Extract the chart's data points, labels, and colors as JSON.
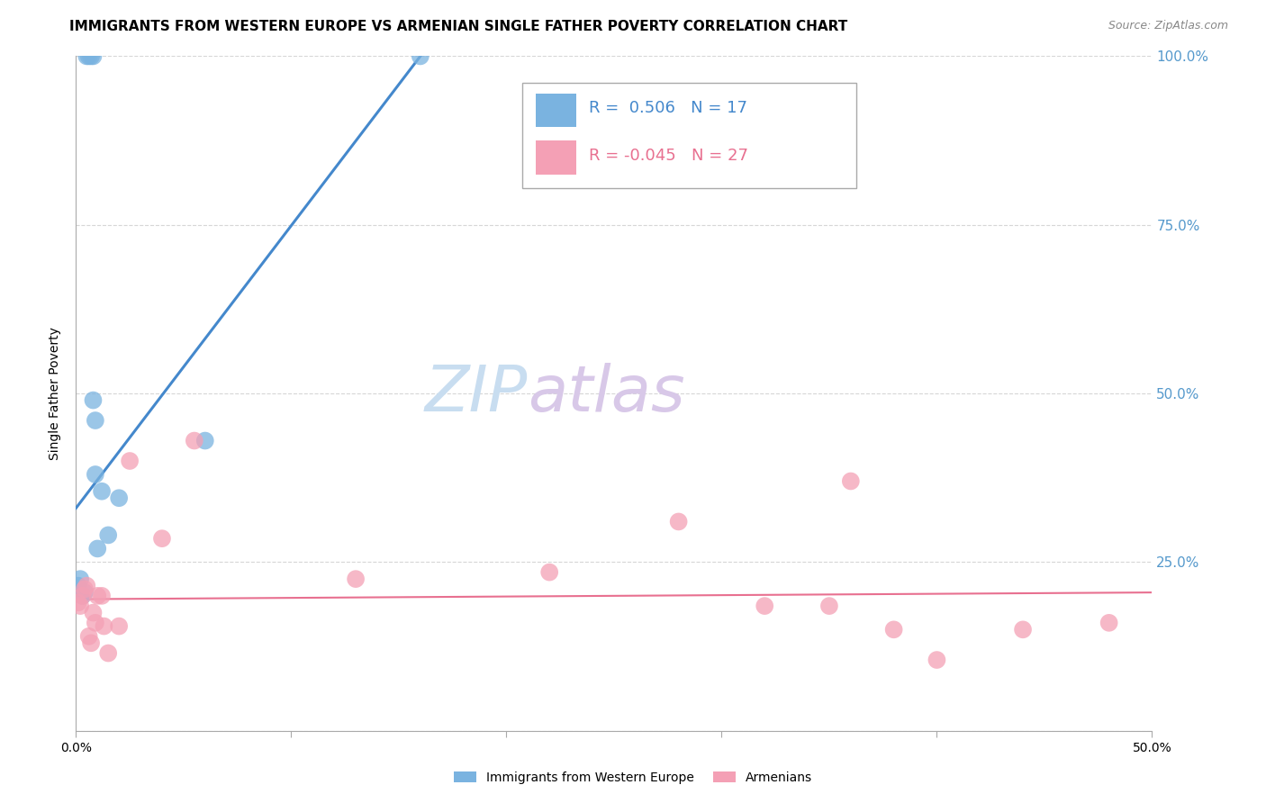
{
  "title": "IMMIGRANTS FROM WESTERN EUROPE VS ARMENIAN SINGLE FATHER POVERTY CORRELATION CHART",
  "source": "Source: ZipAtlas.com",
  "ylabel": "Single Father Poverty",
  "xlim": [
    0,
    0.5
  ],
  "ylim": [
    0,
    1.0
  ],
  "yticks": [
    0.0,
    0.25,
    0.5,
    0.75,
    1.0
  ],
  "ytick_labels": [
    "",
    "25.0%",
    "50.0%",
    "75.0%",
    "100.0%"
  ],
  "xticks": [
    0.0,
    0.1,
    0.2,
    0.3,
    0.4,
    0.5
  ],
  "xtick_labels": [
    "0.0%",
    "",
    "",
    "",
    "",
    "50.0%"
  ],
  "blue_R": 0.506,
  "blue_N": 17,
  "pink_R": -0.045,
  "pink_N": 27,
  "blue_color": "#7ab3e0",
  "pink_color": "#f4a0b5",
  "blue_line_color": "#4488cc",
  "pink_line_color": "#e87090",
  "right_axis_color": "#5599cc",
  "watermark_zip_color": "#c8ddf0",
  "watermark_atlas_color": "#d8c8e8",
  "blue_x": [
    0.001,
    0.002,
    0.003,
    0.004,
    0.005,
    0.006,
    0.007,
    0.008,
    0.008,
    0.009,
    0.009,
    0.01,
    0.012,
    0.015,
    0.02,
    0.06,
    0.16
  ],
  "blue_y": [
    0.215,
    0.225,
    0.2,
    0.205,
    1.0,
    1.0,
    1.0,
    1.0,
    0.49,
    0.46,
    0.38,
    0.27,
    0.355,
    0.29,
    0.345,
    0.43,
    1.0
  ],
  "pink_x": [
    0.001,
    0.002,
    0.003,
    0.004,
    0.005,
    0.006,
    0.007,
    0.008,
    0.009,
    0.01,
    0.012,
    0.013,
    0.015,
    0.02,
    0.025,
    0.04,
    0.055,
    0.13,
    0.22,
    0.28,
    0.32,
    0.36,
    0.4,
    0.44,
    0.48,
    0.35,
    0.38
  ],
  "pink_y": [
    0.19,
    0.185,
    0.2,
    0.21,
    0.215,
    0.14,
    0.13,
    0.175,
    0.16,
    0.2,
    0.2,
    0.155,
    0.115,
    0.155,
    0.4,
    0.285,
    0.43,
    0.225,
    0.235,
    0.31,
    0.185,
    0.37,
    0.105,
    0.15,
    0.16,
    0.185,
    0.15
  ],
  "legend_blue_text": "R =  0.506   N = 17",
  "legend_pink_text": "R = -0.045   N = 27",
  "legend_label_blue": "Immigrants from Western Europe",
  "legend_label_pink": "Armenians",
  "title_fontsize": 11,
  "source_fontsize": 9,
  "legend_fontsize": 13,
  "watermark_fontsize_zip": 52,
  "watermark_fontsize_atlas": 52
}
